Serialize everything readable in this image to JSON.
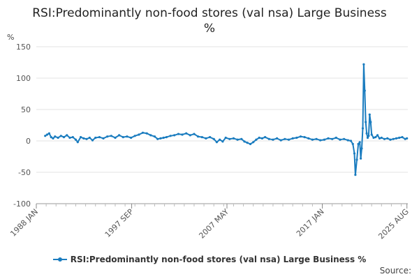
{
  "chart_data": {
    "type": "line",
    "title": "RSI:Predominantly non-food stores (val nsa) Large Business %",
    "title_lines": [
      "RSI:Predominantly non-food stores (val nsa) Large Business",
      "%"
    ],
    "ylabel": "%",
    "xlabel": "",
    "ylim": [
      -100,
      150
    ],
    "yticks": [
      150,
      100,
      50,
      0,
      -50,
      -100
    ],
    "xlim": [
      1988.0,
      2025.67
    ],
    "xticks": [
      {
        "label": "1988 JAN",
        "value": 1988.0
      },
      {
        "label": "1997 SEP",
        "value": 1997.67
      },
      {
        "label": "2007 MAY",
        "value": 2007.33
      },
      {
        "label": "2017 JAN",
        "value": 2017.0
      },
      {
        "label": "2025 AUG",
        "value": 2025.58
      }
    ],
    "grid": "horizontal",
    "legend_position": "bottom",
    "series": [
      {
        "name": "RSI:Predominantly non-food stores (val nsa) Large Business %",
        "color": "#1a7cbf",
        "points": [
          [
            1988.9,
            8
          ],
          [
            1989.1,
            10
          ],
          [
            1989.3,
            12
          ],
          [
            1989.5,
            6
          ],
          [
            1989.7,
            4
          ],
          [
            1989.9,
            7
          ],
          [
            1990.2,
            5
          ],
          [
            1990.5,
            8
          ],
          [
            1990.8,
            6
          ],
          [
            1991.1,
            9
          ],
          [
            1991.4,
            5
          ],
          [
            1991.7,
            6
          ],
          [
            1992.0,
            2
          ],
          [
            1992.2,
            -2
          ],
          [
            1992.5,
            6
          ],
          [
            1992.8,
            4
          ],
          [
            1993.1,
            3
          ],
          [
            1993.4,
            5
          ],
          [
            1993.7,
            1
          ],
          [
            1994.0,
            5
          ],
          [
            1994.4,
            6
          ],
          [
            1994.8,
            4
          ],
          [
            1995.2,
            7
          ],
          [
            1995.6,
            8
          ],
          [
            1996.0,
            5
          ],
          [
            1996.4,
            9
          ],
          [
            1996.8,
            6
          ],
          [
            1997.2,
            7
          ],
          [
            1997.6,
            5
          ],
          [
            1998.0,
            8
          ],
          [
            1998.4,
            10
          ],
          [
            1998.8,
            13
          ],
          [
            1999.2,
            12
          ],
          [
            1999.6,
            9
          ],
          [
            2000.0,
            7
          ],
          [
            2000.3,
            3
          ],
          [
            2000.6,
            4
          ],
          [
            2000.9,
            5
          ],
          [
            2001.2,
            6
          ],
          [
            2001.6,
            8
          ],
          [
            2002.0,
            9
          ],
          [
            2002.4,
            11
          ],
          [
            2002.8,
            10
          ],
          [
            2003.2,
            12
          ],
          [
            2003.6,
            9
          ],
          [
            2004.0,
            11
          ],
          [
            2004.4,
            7
          ],
          [
            2004.8,
            6
          ],
          [
            2005.2,
            4
          ],
          [
            2005.6,
            6
          ],
          [
            2006.0,
            3
          ],
          [
            2006.3,
            -2
          ],
          [
            2006.6,
            2
          ],
          [
            2006.9,
            -1
          ],
          [
            2007.2,
            5
          ],
          [
            2007.6,
            3
          ],
          [
            2008.0,
            4
          ],
          [
            2008.4,
            2
          ],
          [
            2008.8,
            3
          ],
          [
            2009.1,
            -1
          ],
          [
            2009.4,
            -3
          ],
          [
            2009.7,
            -5
          ],
          [
            2010.0,
            -2
          ],
          [
            2010.3,
            2
          ],
          [
            2010.6,
            5
          ],
          [
            2010.9,
            4
          ],
          [
            2011.2,
            6
          ],
          [
            2011.6,
            3
          ],
          [
            2012.0,
            2
          ],
          [
            2012.4,
            4
          ],
          [
            2012.8,
            1
          ],
          [
            2013.2,
            3
          ],
          [
            2013.6,
            2
          ],
          [
            2014.0,
            4
          ],
          [
            2014.4,
            5
          ],
          [
            2014.8,
            7
          ],
          [
            2015.2,
            6
          ],
          [
            2015.6,
            4
          ],
          [
            2016.0,
            2
          ],
          [
            2016.4,
            3
          ],
          [
            2016.8,
            1
          ],
          [
            2017.2,
            2
          ],
          [
            2017.6,
            4
          ],
          [
            2018.0,
            3
          ],
          [
            2018.4,
            5
          ],
          [
            2018.8,
            2
          ],
          [
            2019.2,
            3
          ],
          [
            2019.6,
            1
          ],
          [
            2019.9,
            0
          ],
          [
            2020.1,
            -5
          ],
          [
            2020.25,
            -20
          ],
          [
            2020.35,
            -54
          ],
          [
            2020.5,
            -30
          ],
          [
            2020.65,
            -5
          ],
          [
            2020.8,
            -2
          ],
          [
            2020.9,
            -28
          ],
          [
            2021.0,
            -12
          ],
          [
            2021.1,
            20
          ],
          [
            2021.2,
            122
          ],
          [
            2021.3,
            80
          ],
          [
            2021.4,
            30
          ],
          [
            2021.5,
            12
          ],
          [
            2021.6,
            5
          ],
          [
            2021.7,
            8
          ],
          [
            2021.8,
            42
          ],
          [
            2021.9,
            30
          ],
          [
            2022.0,
            10
          ],
          [
            2022.2,
            5
          ],
          [
            2022.4,
            6
          ],
          [
            2022.6,
            9
          ],
          [
            2022.8,
            4
          ],
          [
            2023.0,
            5
          ],
          [
            2023.3,
            3
          ],
          [
            2023.6,
            4
          ],
          [
            2023.9,
            2
          ],
          [
            2024.2,
            3
          ],
          [
            2024.5,
            4
          ],
          [
            2024.8,
            5
          ],
          [
            2025.1,
            6
          ],
          [
            2025.4,
            3
          ],
          [
            2025.58,
            4
          ]
        ]
      }
    ]
  },
  "footer": {
    "source_label": "Source:"
  }
}
